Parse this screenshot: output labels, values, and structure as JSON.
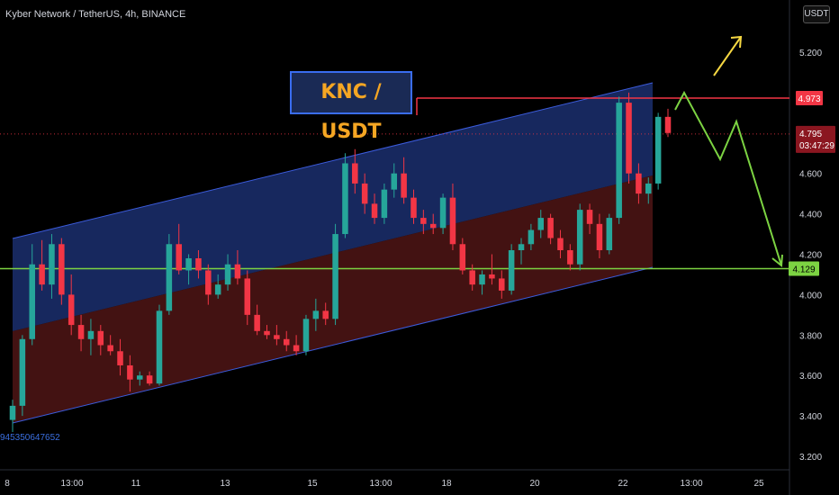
{
  "header": {
    "symbol_line": "Kyber Network / TetherUS, 4h, BINANCE"
  },
  "currency_button": "USDT",
  "annotation_title": "KNC / USDT",
  "bottom_id": "9453506476​52",
  "price_scale": {
    "ticks": [
      "5.200",
      "4.600",
      "4.400",
      "4.200",
      "4.000",
      "3.800",
      "3.600",
      "3.400",
      "3.200"
    ],
    "top_partial_tick": "5"
  },
  "price_tags": {
    "resistance": {
      "label": "4.973",
      "color": "#f23645"
    },
    "last": {
      "label": "4.795",
      "countdown": "03:47:29",
      "color": "#f23645"
    },
    "support": {
      "label": "4.129",
      "color": "#4caf50"
    }
  },
  "time_axis": {
    "ticks": [
      "8",
      "13:00",
      "11",
      "13",
      "15",
      "13:00",
      "18",
      "20",
      "22",
      "13:00",
      "25"
    ]
  },
  "colors": {
    "up": "#26a69a",
    "down": "#f23645",
    "channel_upper_fill": "#1b2f6e",
    "channel_lower_fill": "#4a1414",
    "channel_line": "#3b5bdb",
    "support_line": "#7cd342",
    "resistance_line": "#f23645",
    "projection_green": "#7cd342",
    "projection_yellow": "#f5d742"
  },
  "chart_data": {
    "type": "candlestick",
    "ylim": [
      3.2,
      5.35
    ],
    "candles": [
      [
        3.38,
        3.48,
        3.32,
        3.45
      ],
      [
        3.45,
        3.8,
        3.4,
        3.78
      ],
      [
        3.78,
        4.25,
        3.75,
        4.15
      ],
      [
        4.15,
        4.27,
        4.02,
        4.05
      ],
      [
        4.05,
        4.3,
        3.98,
        4.25
      ],
      [
        4.25,
        4.28,
        3.95,
        4.0
      ],
      [
        4.0,
        4.1,
        3.8,
        3.85
      ],
      [
        3.85,
        3.9,
        3.72,
        3.78
      ],
      [
        3.78,
        3.88,
        3.7,
        3.82
      ],
      [
        3.82,
        3.85,
        3.7,
        3.75
      ],
      [
        3.75,
        3.8,
        3.7,
        3.72
      ],
      [
        3.72,
        3.78,
        3.6,
        3.65
      ],
      [
        3.65,
        3.7,
        3.52,
        3.58
      ],
      [
        3.58,
        3.62,
        3.55,
        3.6
      ],
      [
        3.6,
        3.62,
        3.55,
        3.56
      ],
      [
        3.56,
        3.95,
        3.55,
        3.92
      ],
      [
        3.92,
        4.3,
        3.9,
        4.25
      ],
      [
        4.25,
        4.35,
        4.1,
        4.12
      ],
      [
        4.12,
        4.2,
        4.05,
        4.18
      ],
      [
        4.18,
        4.22,
        4.08,
        4.12
      ],
      [
        4.12,
        4.15,
        3.95,
        4.0
      ],
      [
        4.0,
        4.1,
        3.98,
        4.05
      ],
      [
        4.05,
        4.2,
        4.02,
        4.15
      ],
      [
        4.15,
        4.22,
        4.05,
        4.08
      ],
      [
        4.08,
        4.12,
        3.85,
        3.9
      ],
      [
        3.9,
        3.95,
        3.8,
        3.82
      ],
      [
        3.82,
        3.85,
        3.78,
        3.8
      ],
      [
        3.8,
        3.85,
        3.75,
        3.78
      ],
      [
        3.78,
        3.82,
        3.72,
        3.75
      ],
      [
        3.75,
        3.8,
        3.7,
        3.72
      ],
      [
        3.72,
        3.9,
        3.7,
        3.88
      ],
      [
        3.88,
        3.98,
        3.82,
        3.92
      ],
      [
        3.92,
        3.96,
        3.85,
        3.88
      ],
      [
        3.88,
        4.35,
        3.85,
        4.3
      ],
      [
        4.3,
        4.7,
        4.28,
        4.65
      ],
      [
        4.65,
        4.72,
        4.5,
        4.55
      ],
      [
        4.55,
        4.6,
        4.4,
        4.45
      ],
      [
        4.45,
        4.5,
        4.35,
        4.38
      ],
      [
        4.38,
        4.55,
        4.35,
        4.52
      ],
      [
        4.52,
        4.65,
        4.48,
        4.6
      ],
      [
        4.6,
        4.68,
        4.45,
        4.48
      ],
      [
        4.48,
        4.52,
        4.35,
        4.38
      ],
      [
        4.38,
        4.42,
        4.3,
        4.35
      ],
      [
        4.35,
        4.4,
        4.3,
        4.33
      ],
      [
        4.33,
        4.5,
        4.3,
        4.48
      ],
      [
        4.48,
        4.55,
        4.22,
        4.25
      ],
      [
        4.25,
        4.28,
        4.1,
        4.12
      ],
      [
        4.12,
        4.15,
        4.02,
        4.05
      ],
      [
        4.05,
        4.12,
        4.0,
        4.1
      ],
      [
        4.1,
        4.2,
        4.05,
        4.08
      ],
      [
        4.08,
        4.12,
        3.98,
        4.02
      ],
      [
        4.02,
        4.25,
        4.0,
        4.22
      ],
      [
        4.22,
        4.28,
        4.15,
        4.25
      ],
      [
        4.25,
        4.35,
        4.22,
        4.32
      ],
      [
        4.32,
        4.42,
        4.28,
        4.38
      ],
      [
        4.38,
        4.4,
        4.25,
        4.28
      ],
      [
        4.28,
        4.32,
        4.18,
        4.22
      ],
      [
        4.22,
        4.25,
        4.12,
        4.15
      ],
      [
        4.15,
        4.45,
        4.12,
        4.42
      ],
      [
        4.42,
        4.45,
        4.3,
        4.35
      ],
      [
        4.35,
        4.4,
        4.18,
        4.22
      ],
      [
        4.22,
        4.4,
        4.2,
        4.38
      ],
      [
        4.38,
        4.98,
        4.35,
        4.95
      ],
      [
        4.95,
        5.0,
        4.55,
        4.6
      ],
      [
        4.6,
        4.65,
        4.45,
        4.5
      ],
      [
        4.5,
        4.58,
        4.45,
        4.55
      ],
      [
        4.55,
        4.9,
        4.52,
        4.88
      ],
      [
        4.88,
        4.92,
        4.78,
        4.8
      ]
    ],
    "resistance": 4.973,
    "support": 4.129,
    "last_price": 4.795
  }
}
